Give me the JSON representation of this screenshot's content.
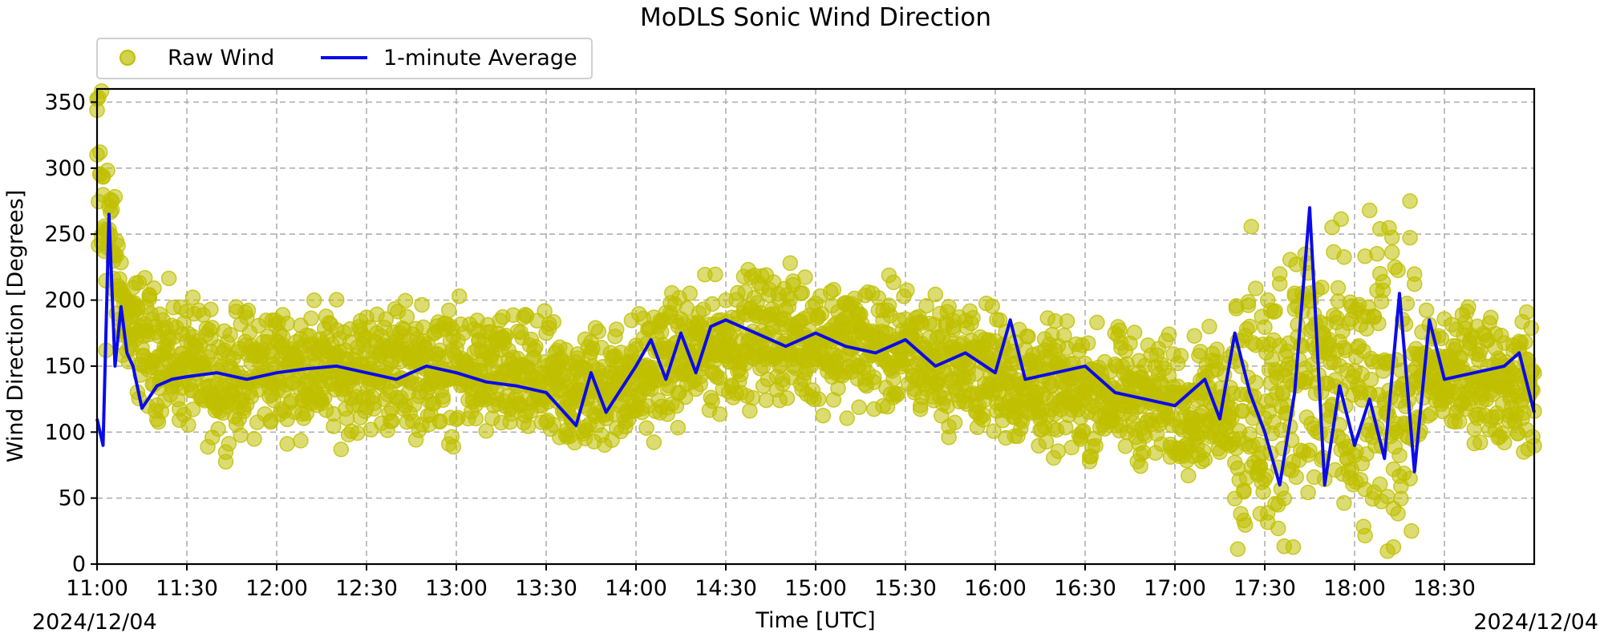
{
  "chart_data": {
    "type": "scatter",
    "title": "MoDLS Sonic Wind Direction",
    "xlabel": "Time [UTC]",
    "ylabel": "Wind Direction [Degrees]",
    "date_left": "2024/12/04",
    "date_right": "2024/12/04",
    "xlim": [
      "11:00",
      "19:00"
    ],
    "ylim": [
      0,
      360
    ],
    "x_ticks": [
      "11:00",
      "11:30",
      "12:00",
      "12:30",
      "13:00",
      "13:30",
      "14:00",
      "14:30",
      "15:00",
      "15:30",
      "16:00",
      "16:30",
      "17:00",
      "17:30",
      "18:00",
      "18:30"
    ],
    "y_ticks": [
      0,
      50,
      100,
      150,
      200,
      250,
      300,
      350
    ],
    "grid": true,
    "legend_position": "top-left",
    "colors": {
      "raw": "#bfbf00",
      "average": "#0b0bea"
    },
    "series": [
      {
        "name": "Raw Wind",
        "kind": "scatter",
        "note_values": "representative envelope of raw wind direction",
        "x": [
          "11:00",
          "11:10",
          "11:20",
          "11:40",
          "12:00",
          "12:20",
          "12:40",
          "13:00",
          "13:20",
          "13:40",
          "14:00",
          "14:10",
          "14:20",
          "14:40",
          "15:00",
          "15:20",
          "15:40",
          "16:00",
          "16:20",
          "16:40",
          "17:00",
          "17:20",
          "17:30",
          "17:40",
          "17:50",
          "18:00",
          "18:10",
          "18:20",
          "18:40",
          "18:58"
        ],
        "values": [
          300,
          180,
          160,
          140,
          150,
          145,
          150,
          145,
          140,
          130,
          140,
          155,
          160,
          175,
          170,
          165,
          155,
          145,
          130,
          130,
          120,
          125,
          110,
          150,
          140,
          120,
          130,
          140,
          145,
          135
        ]
      },
      {
        "name": "1-minute Average",
        "kind": "line",
        "x": [
          "11:00",
          "11:02",
          "11:04",
          "11:06",
          "11:08",
          "11:10",
          "11:12",
          "11:15",
          "11:20",
          "11:25",
          "11:30",
          "11:40",
          "11:50",
          "12:00",
          "12:10",
          "12:20",
          "12:30",
          "12:40",
          "12:50",
          "13:00",
          "13:10",
          "13:20",
          "13:30",
          "13:40",
          "13:45",
          "13:50",
          "14:00",
          "14:05",
          "14:10",
          "14:15",
          "14:20",
          "14:25",
          "14:30",
          "14:40",
          "14:50",
          "15:00",
          "15:10",
          "15:20",
          "15:30",
          "15:40",
          "15:50",
          "16:00",
          "16:05",
          "16:10",
          "16:20",
          "16:30",
          "16:40",
          "16:50",
          "17:00",
          "17:10",
          "17:15",
          "17:20",
          "17:25",
          "17:30",
          "17:35",
          "17:40",
          "17:45",
          "17:50",
          "17:55",
          "18:00",
          "18:05",
          "18:10",
          "18:15",
          "18:20",
          "18:25",
          "18:30",
          "18:40",
          "18:50",
          "18:55",
          "19:00"
        ],
        "values": [
          110,
          90,
          265,
          150,
          195,
          160,
          150,
          118,
          135,
          140,
          142,
          145,
          140,
          145,
          148,
          150,
          145,
          140,
          150,
          145,
          138,
          135,
          130,
          105,
          145,
          115,
          150,
          170,
          140,
          175,
          145,
          180,
          185,
          175,
          165,
          175,
          165,
          160,
          170,
          150,
          160,
          145,
          185,
          140,
          145,
          150,
          130,
          125,
          120,
          140,
          110,
          175,
          130,
          100,
          60,
          130,
          270,
          60,
          135,
          90,
          125,
          80,
          205,
          70,
          185,
          140,
          145,
          150,
          160,
          115
        ]
      }
    ]
  }
}
